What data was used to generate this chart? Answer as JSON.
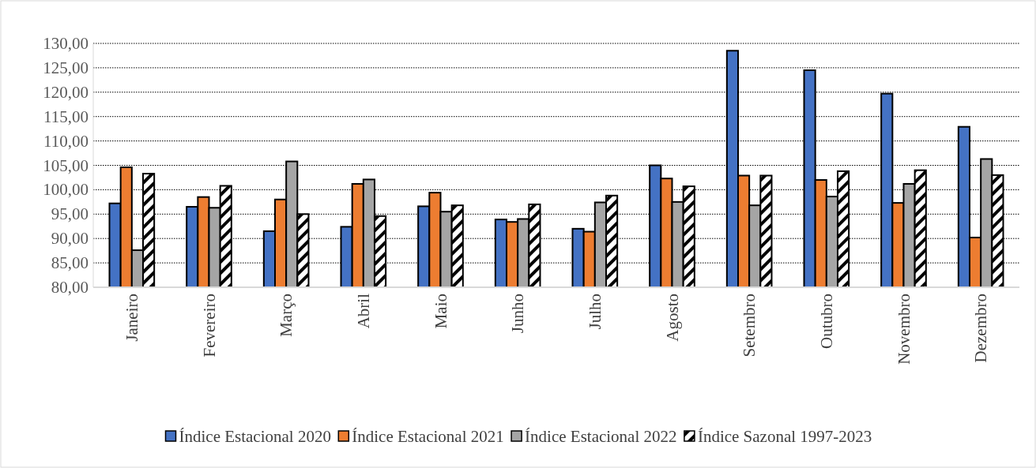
{
  "chart_data": {
    "type": "bar",
    "categories": [
      "Janeiro",
      "Fevereiro",
      "Março",
      "Abril",
      "Maio",
      "Junho",
      "Julho",
      "Agosto",
      "Setembro",
      "Outubro",
      "Novembro",
      "Dezembro"
    ],
    "series": [
      {
        "name": "Índice Estacional 2020",
        "color": "#4472c4",
        "values": [
          97.2,
          96.5,
          91.5,
          92.4,
          96.6,
          93.9,
          92.0,
          105.0,
          128.5,
          124.5,
          119.7,
          112.9
        ]
      },
      {
        "name": "Índice Estacional 2021",
        "color": "#ed7d31",
        "values": [
          104.6,
          98.5,
          98.0,
          101.2,
          99.4,
          93.4,
          91.4,
          102.3,
          102.9,
          102.0,
          97.3,
          90.2
        ]
      },
      {
        "name": "Índice Estacional 2022",
        "color": "#a5a5a5",
        "values": [
          87.6,
          96.3,
          105.8,
          102.1,
          95.5,
          94.0,
          97.4,
          97.5,
          96.8,
          98.6,
          101.2,
          106.3
        ]
      },
      {
        "name": "Índice Sazonal 1997-2023",
        "color": "#000000",
        "values": [
          103.3,
          100.8,
          95.0,
          94.6,
          96.8,
          97.0,
          98.8,
          100.7,
          102.9,
          103.8,
          104.0,
          103.0
        ]
      }
    ],
    "ylim": [
      80,
      130
    ],
    "yticks": [
      {
        "value": 80,
        "label": "80,00"
      },
      {
        "value": 85,
        "label": "85,00"
      },
      {
        "value": 90,
        "label": "90,00"
      },
      {
        "value": 95,
        "label": "95,00"
      },
      {
        "value": 100,
        "label": "100,00"
      },
      {
        "value": 105,
        "label": "105,00"
      },
      {
        "value": 110,
        "label": "110,00"
      },
      {
        "value": 115,
        "label": "115,00"
      },
      {
        "value": 120,
        "label": "120,00"
      },
      {
        "value": 125,
        "label": "125,00"
      },
      {
        "value": 130,
        "label": "130,00"
      }
    ],
    "grid": "y",
    "legend": "bottom"
  }
}
